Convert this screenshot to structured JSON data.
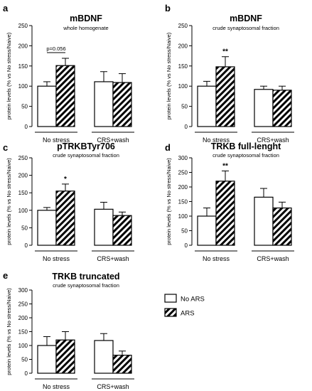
{
  "chart_data": [
    {
      "type": "bar",
      "panel": "a",
      "title": "mBDNF",
      "subtitle": "whole homogenate",
      "ylabel": "protein levels (% vs No stress/Naive)",
      "ylim": [
        0,
        250
      ],
      "yticks": [
        0,
        50,
        100,
        150,
        200,
        250
      ],
      "groups": [
        "No stress",
        "CRS+wash"
      ],
      "series": [
        {
          "name": "No ARS",
          "values": [
            100,
            111
          ],
          "errors": [
            11,
            25
          ]
        },
        {
          "name": "ARS",
          "values": [
            151,
            109
          ],
          "errors": [
            18,
            22
          ]
        }
      ],
      "annotations": [
        {
          "text": "p=0.056",
          "group": 0
        }
      ]
    },
    {
      "type": "bar",
      "panel": "b",
      "title": "mBDNF",
      "subtitle": "crude synaptosomal fraction",
      "ylabel": "protein levels (% vs No stress/Naive)",
      "ylim": [
        0,
        250
      ],
      "yticks": [
        0,
        50,
        100,
        150,
        200,
        250
      ],
      "groups": [
        "No stress",
        "CRS+wash"
      ],
      "series": [
        {
          "name": "No ARS",
          "values": [
            100,
            92
          ],
          "errors": [
            12,
            8
          ]
        },
        {
          "name": "ARS",
          "values": [
            148,
            90
          ],
          "errors": [
            25,
            10
          ]
        }
      ],
      "significance": [
        {
          "text": "**",
          "group": 0,
          "series": 1
        }
      ]
    },
    {
      "type": "bar",
      "panel": "c",
      "title": "pTRKBTyr706",
      "subtitle": "crude synaptosomal fraction",
      "ylabel": "protein levels (% vs No stress/Naive)",
      "ylim": [
        0,
        250
      ],
      "yticks": [
        0,
        50,
        100,
        150,
        200,
        250
      ],
      "groups": [
        "No stress",
        "CRS+wash"
      ],
      "series": [
        {
          "name": "No ARS",
          "values": [
            100,
            103
          ],
          "errors": [
            8,
            20
          ]
        },
        {
          "name": "ARS",
          "values": [
            155,
            85
          ],
          "errors": [
            20,
            10
          ]
        }
      ],
      "significance": [
        {
          "text": "*",
          "group": 0,
          "series": 1
        }
      ]
    },
    {
      "type": "bar",
      "panel": "d",
      "title": "TRKB full-lenght",
      "subtitle": "crude synaptosomal fraction",
      "ylabel": "protein levels (% vs No stress/Naive)",
      "ylim": [
        0,
        300
      ],
      "yticks": [
        0,
        50,
        100,
        150,
        200,
        250,
        300
      ],
      "groups": [
        "No stress",
        "CRS+wash"
      ],
      "series": [
        {
          "name": "No ARS",
          "values": [
            100,
            165
          ],
          "errors": [
            28,
            30
          ]
        },
        {
          "name": "ARS",
          "values": [
            220,
            128
          ],
          "errors": [
            35,
            20
          ]
        }
      ],
      "significance": [
        {
          "text": "**",
          "group": 0,
          "series": 1
        }
      ]
    },
    {
      "type": "bar",
      "panel": "e",
      "title": "TRKB truncated",
      "subtitle": "crude synaptosomal fraction",
      "ylabel": "protein levels (% vs No stress/Naive)",
      "ylim": [
        0,
        300
      ],
      "yticks": [
        0,
        50,
        100,
        150,
        200,
        250,
        300
      ],
      "groups": [
        "No stress",
        "CRS+wash"
      ],
      "series": [
        {
          "name": "No ARS",
          "values": [
            100,
            118
          ],
          "errors": [
            32,
            25
          ]
        },
        {
          "name": "ARS",
          "values": [
            120,
            65
          ],
          "errors": [
            30,
            15
          ]
        }
      ]
    }
  ],
  "legend": {
    "items": [
      {
        "label": "No ARS",
        "fill": "open"
      },
      {
        "label": "ARS",
        "fill": "hatched"
      }
    ]
  }
}
